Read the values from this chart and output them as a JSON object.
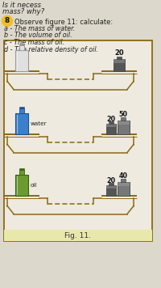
{
  "page_bg": "#ddd8cc",
  "fig_bg": "#eeeae0",
  "border_color": "#8B6914",
  "text_color": "#222222",
  "text_lines": [
    "Is it necess",
    "mass? why?"
  ],
  "question_number": "8",
  "question_circle_color": "#f0c020",
  "question_text": "Observe figure 11: calculate:",
  "sub_questions": [
    "a - The mass of water.",
    "b - The volume of oil.",
    "c - The mass of oil.",
    "d - The relative density of oil."
  ],
  "fig_label": "Fig. 11.",
  "fig_label_bg": "#e8e8aa",
  "rows": [
    {
      "label": "",
      "cyl_color": "#e0e0e0",
      "cyl_outline": "#999999",
      "cyl_fill": "#f8f8f8",
      "weights": [
        20
      ],
      "left_pan_higher": false
    },
    {
      "label": "water",
      "cyl_color": "#3a80cc",
      "cyl_outline": "#1a5090",
      "cyl_fill": "#3a80cc",
      "weights": [
        20,
        50
      ],
      "left_pan_higher": true
    },
    {
      "label": "oil",
      "cyl_color": "#6a9a30",
      "cyl_outline": "#3a6010",
      "cyl_fill": "#6a9a30",
      "weights": [
        20,
        40
      ],
      "left_pan_higher": true
    }
  ],
  "weight_color1": "#555555",
  "weight_color2": "#777777",
  "weight_color_dark": "#444444"
}
